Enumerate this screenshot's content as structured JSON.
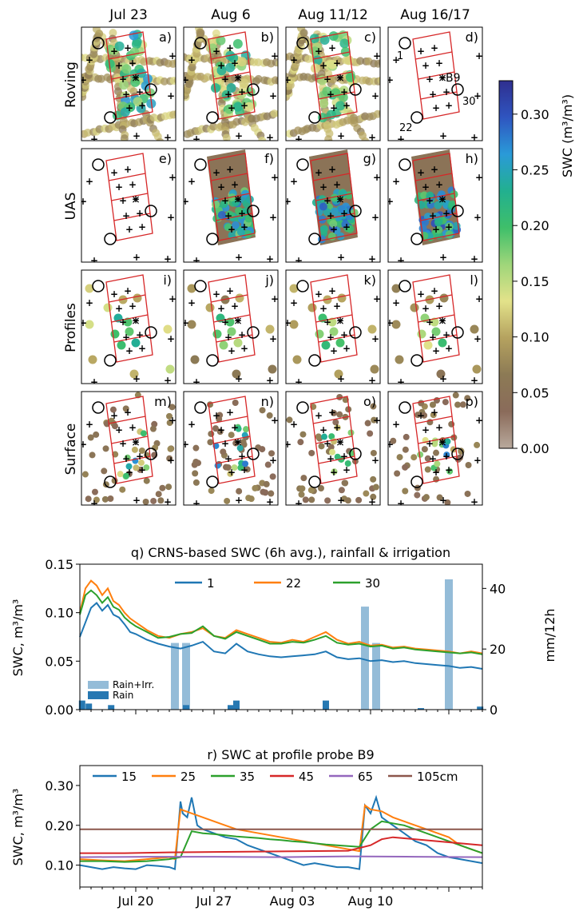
{
  "columns": [
    "Jul 23",
    "Aug 6",
    "Aug 11/12",
    "Aug 16/17"
  ],
  "rows": [
    "Roving",
    "UAS",
    "Profiles",
    "Surface"
  ],
  "panel_letters": [
    "a)",
    "b)",
    "c)",
    "d)",
    "e)",
    "f)",
    "g)",
    "h)",
    "i)",
    "j)",
    "k)",
    "l)",
    "m)",
    "n)",
    "o)",
    "p)"
  ],
  "map_annotations": {
    "probe_label": "B9",
    "station_labels": [
      "1",
      "22",
      "30"
    ]
  },
  "colorbar": {
    "label": "SWC (m³/m³)",
    "ticks": [
      "0.00",
      "0.05",
      "0.10",
      "0.15",
      "0.20",
      "0.25",
      "0.30"
    ],
    "range": [
      0,
      0.33
    ],
    "colors": [
      "#b8a99c",
      "#8a6b5a",
      "#8c7a55",
      "#b5a25f",
      "#e3e28a",
      "#9fd67a",
      "#3fbf6a",
      "#22b08f",
      "#2a9ad8",
      "#2f55c0",
      "#2f2f8f"
    ]
  },
  "chart_data": [
    {
      "type": "line",
      "title": "q) CRNS-based SWC (6h avg.), rainfall & irrigation",
      "ylabel": "SWC, m³/m³",
      "y2label": "mm/12h",
      "ylim": [
        0,
        0.15
      ],
      "y2lim": [
        0,
        48
      ],
      "yticks": [
        "0.00",
        "0.05",
        "0.10",
        "0.15"
      ],
      "y2ticks": [
        "0",
        "20",
        "40"
      ],
      "xlim": [
        0,
        36
      ],
      "x_start": "Jul 15",
      "series": [
        {
          "name": "1",
          "color": "#1f77b4",
          "x": [
            0,
            0.5,
            1,
            1.5,
            2,
            2.5,
            3,
            3.5,
            4,
            4.5,
            5,
            6,
            7,
            8,
            9,
            10,
            11,
            12,
            13,
            14,
            15,
            16,
            17,
            18,
            19,
            20,
            21,
            22,
            23,
            24,
            25,
            26,
            27,
            28,
            29,
            30,
            31,
            32,
            33,
            34,
            35,
            36
          ],
          "values": [
            0.075,
            0.09,
            0.105,
            0.11,
            0.102,
            0.108,
            0.098,
            0.095,
            0.088,
            0.08,
            0.078,
            0.072,
            0.068,
            0.065,
            0.063,
            0.066,
            0.07,
            0.06,
            0.058,
            0.068,
            0.06,
            0.057,
            0.055,
            0.054,
            0.055,
            0.056,
            0.057,
            0.06,
            0.054,
            0.052,
            0.053,
            0.05,
            0.051,
            0.049,
            0.05,
            0.048,
            0.047,
            0.046,
            0.045,
            0.043,
            0.044,
            0.042
          ]
        },
        {
          "name": "22",
          "color": "#ff7f0e",
          "x": [
            0,
            0.5,
            1,
            1.5,
            2,
            2.5,
            3,
            3.5,
            4,
            4.5,
            5,
            6,
            7,
            8,
            9,
            10,
            11,
            12,
            13,
            14,
            15,
            16,
            17,
            18,
            19,
            20,
            21,
            22,
            23,
            24,
            25,
            26,
            27,
            28,
            29,
            30,
            31,
            32,
            33,
            34,
            35,
            36
          ],
          "values": [
            0.1,
            0.125,
            0.133,
            0.128,
            0.118,
            0.125,
            0.112,
            0.108,
            0.1,
            0.094,
            0.09,
            0.082,
            0.076,
            0.074,
            0.078,
            0.08,
            0.084,
            0.076,
            0.074,
            0.082,
            0.078,
            0.074,
            0.07,
            0.069,
            0.072,
            0.07,
            0.075,
            0.08,
            0.072,
            0.068,
            0.07,
            0.066,
            0.067,
            0.064,
            0.065,
            0.063,
            0.062,
            0.061,
            0.06,
            0.058,
            0.06,
            0.058
          ]
        },
        {
          "name": "30",
          "color": "#2ca02c",
          "x": [
            0,
            0.5,
            1,
            1.5,
            2,
            2.5,
            3,
            3.5,
            4,
            4.5,
            5,
            6,
            7,
            8,
            9,
            10,
            11,
            12,
            13,
            14,
            15,
            16,
            17,
            18,
            19,
            20,
            21,
            22,
            23,
            24,
            25,
            26,
            27,
            28,
            29,
            30,
            31,
            32,
            33,
            34,
            35,
            36
          ],
          "values": [
            0.098,
            0.118,
            0.123,
            0.118,
            0.11,
            0.116,
            0.106,
            0.103,
            0.095,
            0.09,
            0.086,
            0.08,
            0.074,
            0.075,
            0.078,
            0.079,
            0.086,
            0.076,
            0.073,
            0.08,
            0.076,
            0.072,
            0.068,
            0.068,
            0.07,
            0.069,
            0.072,
            0.076,
            0.069,
            0.067,
            0.068,
            0.065,
            0.066,
            0.063,
            0.064,
            0.062,
            0.061,
            0.06,
            0.059,
            0.058,
            0.059,
            0.057
          ]
        }
      ],
      "bars": [
        {
          "name": "Rain+Irr.",
          "color": "#94bcd8",
          "x": [
            8.5,
            9.5,
            25.5,
            26.5,
            33.0
          ],
          "values": [
            22,
            22,
            34,
            22,
            43
          ]
        },
        {
          "name": "Rain",
          "color": "#2678b2",
          "x": [
            0.2,
            0.8,
            2.8,
            9.5,
            13.5,
            14.0,
            22.0,
            30.5,
            35.8
          ],
          "values": [
            3,
            2,
            1.5,
            1.5,
            1.5,
            3,
            3,
            0.5,
            1
          ]
        }
      ],
      "legend_position": "top-center",
      "bar_legend_position": "lower-left"
    },
    {
      "type": "line",
      "title": "r) SWC at profile probe B9",
      "ylabel": "SWC, m³/m³",
      "ylim": [
        0.045,
        0.35
      ],
      "yticks": [
        "0.10",
        "0.20",
        "0.30"
      ],
      "xlim": [
        0,
        36
      ],
      "x_start": "Jul 15",
      "xticks": [
        {
          "x": 5,
          "label": "Jul 20"
        },
        {
          "x": 12,
          "label": "Jul 27"
        },
        {
          "x": 19,
          "label": "Aug 03"
        },
        {
          "x": 26,
          "label": "Aug 10"
        }
      ],
      "series": [
        {
          "name": "15",
          "color": "#1f77b4",
          "x": [
            0,
            1,
            2,
            3,
            4,
            5,
            6,
            7,
            8,
            8.5,
            9,
            9.2,
            9.6,
            10,
            10.5,
            11,
            12,
            13,
            14,
            15,
            16,
            17,
            18,
            19,
            20,
            21,
            22,
            23,
            24,
            25,
            25.5,
            26,
            26.5,
            27,
            27.5,
            28,
            29,
            30,
            31,
            32,
            33,
            34,
            35,
            36
          ],
          "values": [
            0.1,
            0.095,
            0.09,
            0.095,
            0.092,
            0.09,
            0.1,
            0.098,
            0.095,
            0.09,
            0.26,
            0.23,
            0.22,
            0.27,
            0.2,
            0.19,
            0.18,
            0.17,
            0.165,
            0.15,
            0.14,
            0.13,
            0.12,
            0.11,
            0.1,
            0.105,
            0.1,
            0.095,
            0.095,
            0.09,
            0.25,
            0.23,
            0.27,
            0.22,
            0.21,
            0.2,
            0.18,
            0.16,
            0.15,
            0.13,
            0.12,
            0.115,
            0.11,
            0.105
          ]
        },
        {
          "name": "25",
          "color": "#ff7f0e",
          "x": [
            0,
            2,
            4,
            6,
            8,
            8.5,
            9,
            10,
            11,
            12,
            13,
            14,
            15,
            16,
            17,
            18,
            19,
            20,
            21,
            22,
            23,
            24,
            25,
            25.5,
            26,
            27,
            28,
            29,
            30,
            31,
            32,
            33,
            34,
            35,
            36
          ],
          "values": [
            0.115,
            0.112,
            0.11,
            0.115,
            0.12,
            0.115,
            0.24,
            0.23,
            0.22,
            0.21,
            0.2,
            0.19,
            0.185,
            0.18,
            0.175,
            0.17,
            0.165,
            0.16,
            0.155,
            0.15,
            0.145,
            0.14,
            0.135,
            0.25,
            0.24,
            0.235,
            0.22,
            0.21,
            0.2,
            0.19,
            0.18,
            0.17,
            0.15,
            0.14,
            0.13
          ]
        },
        {
          "name": "35",
          "color": "#2ca02c",
          "x": [
            0,
            2,
            4,
            6,
            8,
            9,
            10,
            11,
            12,
            13,
            14,
            15,
            16,
            17,
            18,
            19,
            20,
            21,
            22,
            23,
            24,
            25,
            26,
            27,
            28,
            29,
            30,
            31,
            32,
            33,
            34,
            35,
            36
          ],
          "values": [
            0.11,
            0.11,
            0.108,
            0.11,
            0.115,
            0.12,
            0.185,
            0.18,
            0.178,
            0.175,
            0.172,
            0.17,
            0.168,
            0.165,
            0.163,
            0.16,
            0.158,
            0.155,
            0.152,
            0.15,
            0.148,
            0.146,
            0.19,
            0.21,
            0.205,
            0.2,
            0.19,
            0.18,
            0.17,
            0.16,
            0.15,
            0.14,
            0.13
          ]
        },
        {
          "name": "45",
          "color": "#d62728",
          "x": [
            0,
            4,
            8,
            12,
            16,
            20,
            24,
            26,
            27,
            28,
            30,
            32,
            34,
            36
          ],
          "values": [
            0.13,
            0.13,
            0.132,
            0.133,
            0.134,
            0.135,
            0.136,
            0.15,
            0.165,
            0.17,
            0.165,
            0.16,
            0.155,
            0.15
          ]
        },
        {
          "name": "65",
          "color": "#9467bd",
          "x": [
            0,
            6,
            12,
            18,
            24,
            30,
            36
          ],
          "values": [
            0.12,
            0.121,
            0.121,
            0.12,
            0.122,
            0.121,
            0.12
          ]
        },
        {
          "name": "105cm",
          "color": "#8c564b",
          "x": [
            0,
            6,
            12,
            18,
            24,
            30,
            36
          ],
          "values": [
            0.19,
            0.19,
            0.19,
            0.19,
            0.19,
            0.19,
            0.19
          ]
        }
      ],
      "legend_position": "top-center"
    }
  ]
}
